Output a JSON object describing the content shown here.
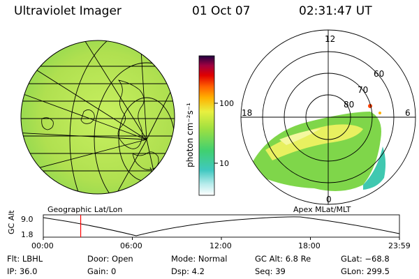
{
  "header": {
    "instrument": "Ultraviolet Imager",
    "date": "01 Oct 07",
    "time": "02:31:47 UT"
  },
  "colorbar": {
    "unit_label": "photon cm⁻²s⁻¹",
    "ticks": [
      "100",
      "10"
    ],
    "scale": "log"
  },
  "geo_panel": {
    "caption": "Geographic Lat/Lon"
  },
  "polar_panel": {
    "caption": "Apex MLat/MLT",
    "mlt_labels": [
      "12",
      "18",
      "6",
      "0"
    ],
    "mlat_labels": [
      "60",
      "70",
      "80"
    ]
  },
  "altitude_plot": {
    "ylabel": "GC Alt",
    "ytick_top": "9.0",
    "ytick_bottom": "1.8",
    "xticks": [
      "00:00",
      "06:00",
      "12:00",
      "18:00",
      "23:59"
    ],
    "current_time_fraction": 0.105,
    "line_color": "#ff0000"
  },
  "info": {
    "row1": {
      "flt": "Flt: LBHL",
      "door": "Door: Open",
      "mode": "Mode: Normal",
      "gcalt": "GC Alt: 6.8 Re",
      "glat": "GLat: −68.8"
    },
    "row2": {
      "ip": "IP: 36.0",
      "gain": "Gain:  0",
      "dsp": "Dsp:     4.2",
      "seq": "Seq: 39",
      "glon": "GLon: 299.5"
    }
  },
  "colors": {
    "map_fill": "#b8e85a",
    "auroral_green": "#7fd64a",
    "auroral_yellow": "#e8f060",
    "low_cyan": "#40c8b0"
  }
}
